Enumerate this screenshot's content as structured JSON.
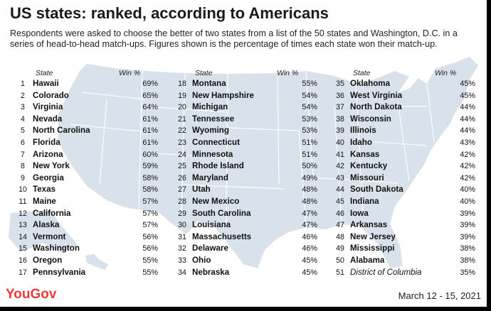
{
  "header": {
    "title": "US states: ranked, according to Americans",
    "subtitle": "Respondents were asked to choose the better of two states from a list of the 50 states and Washington, D.C. in a series of head-to-head match-ups. Figures shown is the percentage of times each state won their match-up."
  },
  "columns": {
    "state_label": "State",
    "win_label": "Win %"
  },
  "chart_data": {
    "type": "table",
    "title": "US states: ranked, according to Americans",
    "columns": [
      "State",
      "Win %"
    ],
    "rows": [
      {
        "rank": "1",
        "state": "Hawaii",
        "win": "69%"
      },
      {
        "rank": "2",
        "state": "Colorado",
        "win": "65%"
      },
      {
        "rank": "3",
        "state": "Virginia",
        "win": "64%"
      },
      {
        "rank": "4",
        "state": "Nevada",
        "win": "61%"
      },
      {
        "rank": "5",
        "state": "North Carolina",
        "win": "61%"
      },
      {
        "rank": "6",
        "state": "Florida",
        "win": "61%"
      },
      {
        "rank": "7",
        "state": "Arizona",
        "win": "60%"
      },
      {
        "rank": "8",
        "state": "New York",
        "win": "59%"
      },
      {
        "rank": "9",
        "state": "Georgia",
        "win": "58%"
      },
      {
        "rank": "10",
        "state": "Texas",
        "win": "58%"
      },
      {
        "rank": "11",
        "state": "Maine",
        "win": "57%"
      },
      {
        "rank": "12",
        "state": "California",
        "win": "57%"
      },
      {
        "rank": "13",
        "state": "Alaska",
        "win": "57%"
      },
      {
        "rank": "14",
        "state": "Vermont",
        "win": "56%"
      },
      {
        "rank": "15",
        "state": "Washington",
        "win": "56%"
      },
      {
        "rank": "16",
        "state": "Oregon",
        "win": "55%"
      },
      {
        "rank": "17",
        "state": "Pennsylvania",
        "win": "55%"
      },
      {
        "rank": "18",
        "state": "Montana",
        "win": "55%"
      },
      {
        "rank": "19",
        "state": "New Hampshire",
        "win": "54%"
      },
      {
        "rank": "20",
        "state": "Michigan",
        "win": "54%"
      },
      {
        "rank": "21",
        "state": "Tennessee",
        "win": "53%"
      },
      {
        "rank": "22",
        "state": "Wyoming",
        "win": "53%"
      },
      {
        "rank": "23",
        "state": "Connecticut",
        "win": "51%"
      },
      {
        "rank": "24",
        "state": "Minnesota",
        "win": "51%"
      },
      {
        "rank": "25",
        "state": "Rhode Island",
        "win": "50%"
      },
      {
        "rank": "26",
        "state": "Maryland",
        "win": "49%"
      },
      {
        "rank": "27",
        "state": "Utah",
        "win": "48%"
      },
      {
        "rank": "28",
        "state": "New Mexico",
        "win": "48%"
      },
      {
        "rank": "29",
        "state": "South Carolina",
        "win": "47%"
      },
      {
        "rank": "30",
        "state": "Louisiana",
        "win": "47%"
      },
      {
        "rank": "31",
        "state": "Massachusetts",
        "win": "46%"
      },
      {
        "rank": "32",
        "state": "Delaware",
        "win": "46%"
      },
      {
        "rank": "33",
        "state": "Ohio",
        "win": "45%"
      },
      {
        "rank": "34",
        "state": "Nebraska",
        "win": "45%"
      },
      {
        "rank": "35",
        "state": "Oklahoma",
        "win": "45%"
      },
      {
        "rank": "36",
        "state": "West Virginia",
        "win": "45%"
      },
      {
        "rank": "37",
        "state": "North Dakota",
        "win": "44%"
      },
      {
        "rank": "38",
        "state": "Wisconsin",
        "win": "44%"
      },
      {
        "rank": "39",
        "state": "Illinois",
        "win": "44%"
      },
      {
        "rank": "40",
        "state": "Idaho",
        "win": "43%"
      },
      {
        "rank": "41",
        "state": "Kansas",
        "win": "42%"
      },
      {
        "rank": "42",
        "state": "Kentucky",
        "win": "42%"
      },
      {
        "rank": "43",
        "state": "Missouri",
        "win": "42%"
      },
      {
        "rank": "44",
        "state": "South Dakota",
        "win": "40%"
      },
      {
        "rank": "45",
        "state": "Indiana",
        "win": "40%"
      },
      {
        "rank": "46",
        "state": "Iowa",
        "win": "39%"
      },
      {
        "rank": "47",
        "state": "Arkansas",
        "win": "39%"
      },
      {
        "rank": "48",
        "state": "New Jersey",
        "win": "39%"
      },
      {
        "rank": "49",
        "state": "Mississippi",
        "win": "38%"
      },
      {
        "rank": "50",
        "state": "Alabama",
        "win": "38%"
      },
      {
        "rank": "51",
        "state": "District of Columbia",
        "win": "35%"
      }
    ]
  },
  "footer": {
    "brand": "YouGov",
    "date": "March 12 - 15, 2021"
  },
  "colors": {
    "map_fill": "#d9e2ea",
    "map_line": "#ffffff",
    "brand": "#ee3a3a"
  }
}
